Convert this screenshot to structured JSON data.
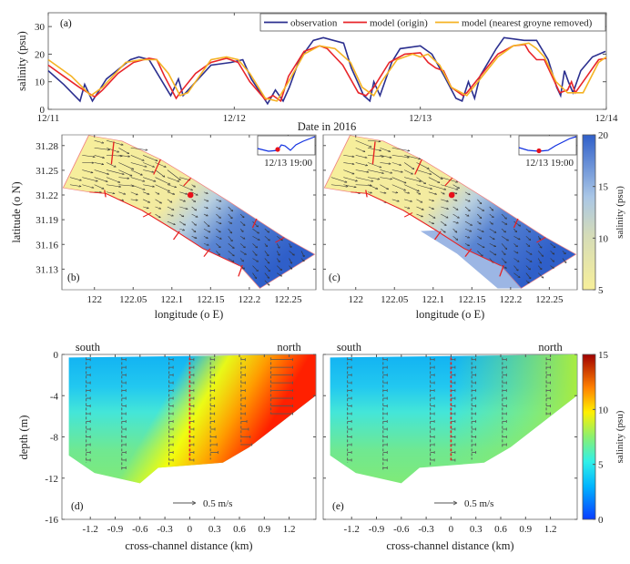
{
  "chart_data": [
    {
      "panel": "(a)",
      "type": "line",
      "xlabel": "Date in 2016",
      "ylabel": "salinity (psu)",
      "xticks": [
        "12/11",
        "12/12",
        "12/13",
        "12/14"
      ],
      "xlim": [
        "12/11 00:00",
        "12/14 00:00"
      ],
      "yticks": [
        0,
        10,
        20,
        30
      ],
      "ylim": [
        0,
        35
      ],
      "legend_position": "top-right",
      "series": [
        {
          "name": "observation",
          "color": "#2b2f8f",
          "x": [
            "12/11 00:00",
            "12/11 02:00",
            "12/11 04:06",
            "12/11 04:42",
            "12/11 05:42",
            "12/11 07:30",
            "12/11 10:36",
            "12/11 11:42",
            "12/11 13:00",
            "12/11 15:48",
            "12/11 16:48",
            "12/11 17:24",
            "12/11 21:00",
            "12/11 23:36",
            "12/12 01:06",
            "12/12 02:12",
            "12/12 04:18",
            "12/12 05:18",
            "12/12 06:18",
            "12/12 07:06",
            "12/12 08:24",
            "12/12 10:12",
            "12/12 11:30",
            "12/12 14:06",
            "12/12 15:06",
            "12/12 16:42",
            "12/12 17:30",
            "12/12 18:00",
            "12/12 18:48",
            "12/12 20:18",
            "12/12 21:24",
            "12/13 00:00",
            "12/13 01:30",
            "12/13 03:06",
            "12/13 04:36",
            "12/13 05:24",
            "12/13 06:12",
            "12/13 07:00",
            "12/13 07:42",
            "12/13 09:48",
            "12/13 10:48",
            "12/13 13:24",
            "12/13 15:00",
            "12/13 16:30",
            "12/13 17:36",
            "12/13 18:06",
            "12/13 18:36",
            "12/13 19:06",
            "12/13 19:42",
            "12/13 20:42",
            "12/13 22:12",
            "12/13 23:54"
          ],
          "y": [
            14,
            9,
            3,
            9,
            3,
            11,
            18,
            19,
            18,
            5,
            11,
            5,
            16,
            17,
            18,
            11,
            2,
            7,
            3,
            8,
            18,
            25,
            26,
            24,
            15,
            5,
            3,
            10,
            5,
            17,
            22,
            23,
            20,
            12,
            4,
            3,
            10,
            4,
            12,
            22,
            26,
            25,
            25,
            18,
            8,
            5,
            14,
            10,
            6,
            14,
            19,
            21
          ]
        },
        {
          "name": "model (origin)",
          "color": "#e8252a",
          "x": [
            "12/11 00:00",
            "12/11 02:00",
            "12/11 04:00",
            "12/11 06:00",
            "12/11 07:00",
            "12/11 09:00",
            "12/11 11:00",
            "12/11 13:00",
            "12/11 14:00",
            "12/11 15:00",
            "12/11 16:30",
            "12/11 17:00",
            "12/11 19:00",
            "12/11 21:00",
            "12/11 23:00",
            "12/12 00:30",
            "12/12 02:00",
            "12/12 04:00",
            "12/12 05:00",
            "12/12 06:00",
            "12/12 07:00",
            "12/12 09:00",
            "12/12 11:00",
            "12/12 12:00",
            "12/12 13:00",
            "12/12 14:00",
            "12/12 16:00",
            "12/12 17:00",
            "12/12 18:00",
            "12/12 20:00",
            "12/12 22:00",
            "12/13 00:00",
            "12/13 01:00",
            "12/13 02:00",
            "12/13 03:00",
            "12/13 04:00",
            "12/13 05:30",
            "12/13 06:00",
            "12/13 08:00",
            "12/13 10:00",
            "12/13 12:00",
            "12/13 13:30",
            "12/13 14:00",
            "12/13 15:00",
            "12/13 16:00",
            "12/13 17:00",
            "12/13 18:00",
            "12/13 19:00",
            "12/13 19:30",
            "12/13 20:00",
            "12/13 21:30",
            "12/13 23:00",
            "12/14 00:00"
          ],
          "y": [
            16,
            12,
            8,
            4.5,
            7,
            13,
            17,
            18.5,
            18,
            12,
            4,
            6,
            13,
            17,
            18.5,
            17,
            10,
            3.5,
            5,
            3,
            12,
            21,
            23,
            22,
            19,
            16,
            6,
            5,
            8,
            17,
            20,
            20.5,
            17,
            15,
            14,
            8,
            5,
            6,
            13,
            20,
            23,
            23.5,
            21,
            18,
            18,
            12,
            6,
            7,
            10,
            6,
            12,
            18,
            18.5
          ]
        },
        {
          "name": "model (nearest groyne removed)",
          "color": "#f5b324",
          "x": [
            "12/11 00:00",
            "12/11 03:00",
            "12/11 05:30",
            "12/11 07:00",
            "12/11 08:00",
            "12/11 10:00",
            "12/11 12:00",
            "12/11 14:00",
            "12/11 15:30",
            "12/11 17:00",
            "12/11 18:00",
            "12/11 19:30",
            "12/11 21:00",
            "12/11 23:00",
            "12/12 00:30",
            "12/12 02:00",
            "12/12 04:00",
            "12/12 05:30",
            "12/12 07:00",
            "12/12 09:00",
            "12/12 11:00",
            "12/12 13:00",
            "12/12 15:00",
            "12/12 16:30",
            "12/12 18:00",
            "12/12 19:00",
            "12/12 21:00",
            "12/12 23:00",
            "12/13 00:00",
            "12/13 01:00",
            "12/13 02:30",
            "12/13 04:00",
            "12/13 06:00",
            "12/13 08:00",
            "12/13 10:00",
            "12/13 12:00",
            "12/13 14:00",
            "12/13 15:00",
            "12/13 16:00",
            "12/13 17:30",
            "12/13 19:00",
            "12/13 21:00",
            "12/13 23:00",
            "12/14 00:00"
          ],
          "y": [
            18,
            12,
            5,
            8,
            11,
            17,
            18,
            18,
            13,
            5,
            6,
            12,
            18,
            19,
            18,
            13,
            4,
            3,
            10,
            20,
            23,
            22,
            17,
            8,
            5,
            10,
            18,
            20,
            19,
            20,
            16,
            8,
            5,
            12,
            19,
            23,
            24,
            22,
            19,
            10,
            6,
            6,
            17,
            19
          ]
        }
      ]
    },
    {
      "panel": "(b)",
      "type": "heatmap",
      "xlabel": "longitude (o E)",
      "ylabel": "latitude (o N)",
      "xticks": [
        122,
        122.05,
        122.1,
        122.15,
        122.2,
        122.25
      ],
      "xlim": [
        121.958,
        122.286
      ],
      "yticks": [
        31.13,
        31.16,
        31.19,
        31.22,
        31.25,
        31.28
      ],
      "ylim": [
        31.105,
        31.293
      ],
      "station_marker": {
        "lon": 122.124,
        "lat": 31.22,
        "color": "#e8101a"
      },
      "inset_label": "12/13 19:00",
      "colorbar": {
        "label": "salinity (psu)",
        "ticks": [
          5,
          10,
          15,
          20
        ],
        "range": [
          5,
          20
        ],
        "low_color": "#f7ef9a",
        "high_color": "#2f5fc9"
      }
    },
    {
      "panel": "(c)",
      "type": "heatmap",
      "xlabel": "longitude (o E)",
      "xticks": [
        122,
        122.05,
        122.1,
        122.15,
        122.2,
        122.25
      ],
      "xlim": [
        121.958,
        122.286
      ],
      "ylim": [
        31.105,
        31.293
      ],
      "station_marker": {
        "lon": 122.124,
        "lat": 31.22,
        "color": "#e8101a"
      },
      "inset_label": "12/13 19:00"
    },
    {
      "panel": "(d)",
      "type": "heatmap",
      "xlabel": "cross-channel distance (km)",
      "ylabel": "depth (m)",
      "xticks": [
        -1.2,
        -0.9,
        -0.6,
        -0.3,
        0,
        0.3,
        0.6,
        0.9,
        1.2
      ],
      "xlim": [
        -1.543,
        1.523
      ],
      "yticks": [
        0,
        -4,
        -8,
        -12,
        -16
      ],
      "ylim": [
        -16,
        0
      ],
      "side_labels": {
        "left": "south",
        "right": "north"
      },
      "scale_arrow_label": "0.5 m/s",
      "colorbar": {
        "label": "salinity (psu)",
        "ticks": [
          0,
          5,
          10,
          15
        ],
        "range": [
          0,
          15
        ],
        "colormap": "jet"
      }
    },
    {
      "panel": "(e)",
      "type": "heatmap",
      "xlabel": "cross-channel distance (km)",
      "xticks": [
        -1.2,
        -0.9,
        -0.6,
        -0.3,
        0,
        0.3,
        0.6,
        0.9,
        1.2
      ],
      "xlim": [
        -1.543,
        1.523
      ],
      "ylim": [
        -16,
        0
      ],
      "side_labels": {
        "left": "south",
        "right": "north"
      },
      "scale_arrow_label": "0.5 m/s"
    }
  ]
}
